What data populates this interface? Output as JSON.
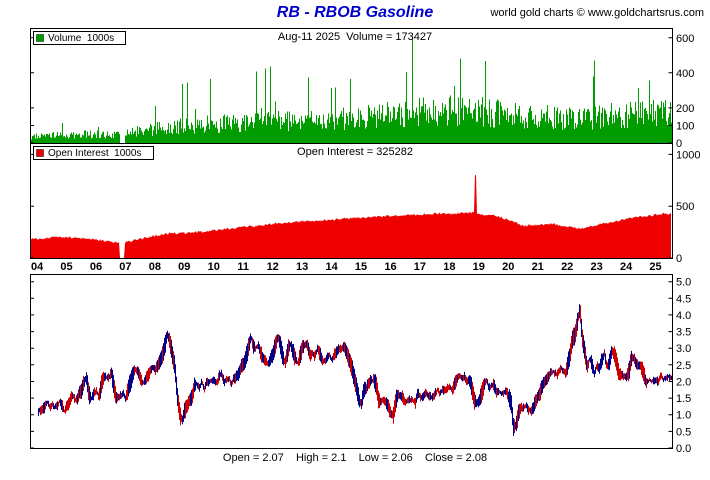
{
  "header": {
    "title": "RB - RBOB Gasoline",
    "watermark": "world gold charts © www.goldchartsrus.com"
  },
  "chart_data": [
    {
      "type": "bar",
      "name": "volume",
      "legend": "Volume  1000s",
      "header_text": "Aug-11 2025  Volume = 173427",
      "latest_volume": 173427,
      "color": "#009c00",
      "ylim": [
        0,
        650
      ],
      "yticks": [
        600,
        400,
        200,
        100,
        0
      ],
      "x_range": [
        2003.76,
        2025.56
      ],
      "gap_x": [
        2006.8,
        2006.97
      ],
      "envelope": [
        [
          2003.8,
          42
        ],
        [
          2005,
          52
        ],
        [
          2006,
          58
        ],
        [
          2006.6,
          52
        ],
        [
          2006.8,
          50
        ],
        [
          2007,
          62
        ],
        [
          2008,
          92
        ],
        [
          2009,
          112
        ],
        [
          2010,
          122
        ],
        [
          2011,
          132
        ],
        [
          2012,
          140
        ],
        [
          2013,
          142
        ],
        [
          2014,
          152
        ],
        [
          2015,
          168
        ],
        [
          2016,
          182
        ],
        [
          2017,
          205
        ],
        [
          2018,
          215
        ],
        [
          2019,
          205
        ],
        [
          2020,
          185
        ],
        [
          2021,
          172
        ],
        [
          2022,
          162
        ],
        [
          2023,
          172
        ],
        [
          2024,
          185
        ],
        [
          2025,
          195
        ],
        [
          2025.6,
          190
        ]
      ]
    },
    {
      "type": "area",
      "name": "open-interest",
      "legend": "Open Interest  1000s",
      "header_text": "Open Interest = 325282",
      "latest_open_interest": 325282,
      "color": "#ee0000",
      "ylim": [
        0,
        1100
      ],
      "yticks": [
        1000,
        500,
        0
      ],
      "gap_x": [
        2006.8,
        2006.97
      ],
      "spike": {
        "x": 2018.88,
        "value": 800
      },
      "keypoints": [
        [
          2003.8,
          185
        ],
        [
          2004.5,
          195
        ],
        [
          2005,
          200
        ],
        [
          2005.5,
          190
        ],
        [
          2006,
          178
        ],
        [
          2006.5,
          158
        ],
        [
          2006.8,
          150
        ],
        [
          2007,
          150
        ],
        [
          2007.5,
          185
        ],
        [
          2008,
          215
        ],
        [
          2008.5,
          235
        ],
        [
          2009,
          240
        ],
        [
          2010,
          265
        ],
        [
          2010.5,
          285
        ],
        [
          2011,
          300
        ],
        [
          2011.5,
          310
        ],
        [
          2012,
          330
        ],
        [
          2012.5,
          340
        ],
        [
          2013,
          355
        ],
        [
          2014,
          365
        ],
        [
          2014.5,
          380
        ],
        [
          2015,
          390
        ],
        [
          2015.5,
          400
        ],
        [
          2016,
          405
        ],
        [
          2016.5,
          415
        ],
        [
          2017,
          420
        ],
        [
          2017.5,
          430
        ],
        [
          2018,
          425
        ],
        [
          2018.5,
          435
        ],
        [
          2018.9,
          440
        ],
        [
          2019,
          420
        ],
        [
          2019.5,
          410
        ],
        [
          2020,
          370
        ],
        [
          2020.5,
          310
        ],
        [
          2021,
          320
        ],
        [
          2021.5,
          330
        ],
        [
          2022,
          300
        ],
        [
          2022.5,
          285
        ],
        [
          2023,
          320
        ],
        [
          2023.5,
          345
        ],
        [
          2024,
          380
        ],
        [
          2024.5,
          400
        ],
        [
          2025,
          415
        ],
        [
          2025.3,
          430
        ],
        [
          2025.56,
          420
        ]
      ]
    },
    {
      "type": "candlestick",
      "name": "price",
      "ohlc_text": "Open = 2.07    High = 2.1    Low = 2.06    Close = 2.08",
      "open": 2.07,
      "high": 2.1,
      "low": 2.06,
      "close": 2.08,
      "up_color": "#000088",
      "down_color": "#cc0000",
      "ylim": [
        0,
        5.2
      ],
      "yticks": [
        "5.0",
        "4.5",
        "4.0",
        "3.5",
        "3.0",
        "2.5",
        "2.0",
        "1.5",
        "1.0",
        "0.5",
        "0.0"
      ],
      "xticks": [
        "04",
        "05",
        "06",
        "07",
        "08",
        "09",
        "10",
        "11",
        "12",
        "13",
        "14",
        "15",
        "16",
        "17",
        "18",
        "19",
        "20",
        "21",
        "22",
        "23",
        "24",
        "25"
      ],
      "monthly_close": {
        "start_year": 2004,
        "values": [
          1.08,
          1.12,
          1.16,
          1.22,
          1.4,
          1.22,
          1.3,
          1.22,
          1.28,
          1.38,
          1.26,
          1.12,
          1.28,
          1.34,
          1.58,
          1.5,
          1.44,
          1.64,
          1.74,
          2.0,
          2.1,
          1.6,
          1.48,
          1.64,
          1.74,
          1.5,
          1.9,
          2.1,
          2.14,
          2.1,
          2.28,
          1.9,
          1.48,
          1.52,
          1.58,
          1.64,
          1.48,
          1.8,
          2.0,
          2.24,
          2.38,
          2.26,
          2.08,
          1.92,
          2.06,
          2.18,
          2.34,
          2.4,
          2.34,
          2.5,
          2.64,
          2.8,
          3.12,
          3.44,
          3.18,
          2.8,
          2.46,
          1.52,
          1.0,
          0.84,
          1.14,
          1.28,
          1.44,
          1.5,
          1.9,
          1.92,
          1.8,
          2.0,
          1.78,
          2.0,
          1.98,
          2.04,
          2.04,
          1.94,
          2.14,
          2.24,
          1.98,
          2.04,
          2.1,
          1.9,
          2.1,
          2.14,
          2.24,
          2.44,
          2.5,
          2.74,
          3.04,
          3.34,
          3.04,
          2.98,
          3.1,
          2.84,
          2.7,
          2.64,
          2.54,
          2.68,
          2.84,
          3.1,
          3.34,
          3.1,
          2.7,
          2.6,
          2.94,
          3.14,
          2.92,
          2.72,
          2.54,
          2.78,
          3.04,
          3.12,
          3.1,
          2.8,
          2.84,
          2.74,
          3.0,
          2.84,
          2.64,
          2.6,
          2.7,
          2.8,
          2.64,
          2.8,
          2.9,
          3.0,
          3.0,
          3.04,
          2.84,
          2.64,
          2.44,
          2.14,
          1.84,
          1.44,
          1.34,
          1.74,
          1.8,
          1.94,
          2.04,
          2.06,
          1.9,
          1.44,
          1.4,
          1.44,
          1.34,
          1.24,
          1.04,
          1.0,
          1.44,
          1.6,
          1.6,
          1.5,
          1.34,
          1.44,
          1.46,
          1.44,
          1.36,
          1.64,
          1.54,
          1.5,
          1.64,
          1.6,
          1.54,
          1.5,
          1.64,
          1.74,
          1.64,
          1.74,
          1.74,
          1.8,
          1.84,
          1.74,
          1.94,
          2.1,
          2.2,
          2.1,
          2.14,
          2.0,
          2.04,
          1.8,
          1.44,
          1.34,
          1.4,
          1.64,
          1.9,
          2.04,
          1.8,
          1.9,
          1.9,
          1.64,
          1.7,
          1.64,
          1.66,
          1.72,
          1.54,
          1.4,
          0.6,
          0.7,
          1.04,
          1.2,
          1.2,
          1.3,
          1.14,
          1.1,
          1.2,
          1.42,
          1.54,
          1.7,
          1.94,
          2.04,
          2.14,
          2.24,
          2.3,
          2.24,
          2.2,
          2.4,
          2.34,
          2.24,
          2.5,
          2.8,
          3.3,
          3.4,
          3.8,
          4.2,
          3.3,
          2.9,
          2.4,
          2.7,
          2.5,
          2.24,
          2.5,
          2.4,
          2.64,
          2.84,
          2.44,
          2.6,
          2.9,
          2.84,
          2.54,
          2.24,
          2.2,
          2.14,
          2.14,
          2.3,
          2.7,
          2.74,
          2.5,
          2.5,
          2.44,
          2.24,
          1.96,
          2.04,
          2.0,
          2.02,
          2.04,
          2.0,
          2.2,
          2.06,
          2.12,
          2.14,
          2.12,
          2.08
        ]
      }
    }
  ]
}
